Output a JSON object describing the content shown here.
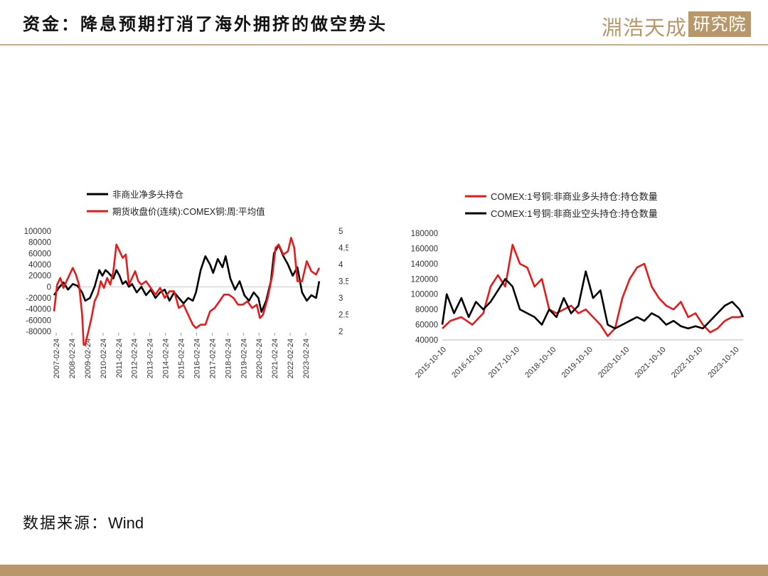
{
  "header": {
    "title": "资金：降息预期打消了海外拥挤的做空势头",
    "logo_text": "淵浩天成",
    "logo_box_text": "研究院"
  },
  "footer": {
    "source_label": "数据来源：",
    "source_value": "Wind"
  },
  "colors": {
    "red": "#e8191a",
    "black": "#000000",
    "gold": "#b8986a",
    "zero_line": "#c8c8c8"
  },
  "chart_data": [
    {
      "type": "line",
      "title": "",
      "legend_position": "top",
      "y_left": {
        "min": -80000,
        "max": 100000,
        "ticks": [
          100000,
          80000,
          60000,
          40000,
          20000,
          0,
          -20000,
          -40000,
          -60000,
          -80000
        ]
      },
      "y_right": {
        "min": 2,
        "max": 5,
        "ticks": [
          "5",
          "4.5",
          "4",
          "3.5",
          "3",
          "2.5",
          "2"
        ]
      },
      "x_range": [
        2007.0,
        2024.05
      ],
      "x_tick_labels": [
        "2007-02-24",
        "2008-02-24",
        "2009-02-24",
        "2010-02-24",
        "2011-02-24",
        "2012-02-24",
        "2013-02-24",
        "2014-02-24",
        "2015-02-24",
        "2016-02-24",
        "2017-02-24",
        "2018-02-24",
        "2019-02-24",
        "2020-02-24",
        "2021-02-24",
        "2022-02-24",
        "2023-02-24"
      ],
      "series": [
        {
          "name": "非商业净多头持仓",
          "axis": "left",
          "color": "#000000",
          "x": [
            2007.0,
            2007.3,
            2007.6,
            2007.9,
            2008.2,
            2008.5,
            2008.8,
            2009.0,
            2009.3,
            2009.6,
            2009.9,
            2010.1,
            2010.3,
            2010.5,
            2010.8,
            2011.0,
            2011.2,
            2011.4,
            2011.6,
            2011.8,
            2012.0,
            2012.3,
            2012.6,
            2012.9,
            2013.2,
            2013.5,
            2013.8,
            2014.1,
            2014.4,
            2014.7,
            2015.0,
            2015.3,
            2015.6,
            2015.9,
            2016.1,
            2016.4,
            2016.7,
            2017.0,
            2017.2,
            2017.5,
            2017.8,
            2018.0,
            2018.3,
            2018.6,
            2018.9,
            2019.2,
            2019.5,
            2019.8,
            2020.1,
            2020.3,
            2020.6,
            2020.9,
            2021.1,
            2021.4,
            2021.7,
            2022.0,
            2022.3,
            2022.6,
            2022.9,
            2023.2,
            2023.5,
            2023.8,
            2024.0
          ],
          "values": [
            -15000,
            -2000,
            8000,
            -5000,
            5000,
            2000,
            -10000,
            -25000,
            -20000,
            0,
            30000,
            20000,
            30000,
            25000,
            15000,
            30000,
            20000,
            5000,
            10000,
            0,
            5000,
            -10000,
            0,
            -15000,
            -5000,
            -20000,
            -10000,
            -5000,
            -25000,
            -10000,
            -20000,
            -30000,
            -20000,
            -25000,
            -10000,
            30000,
            55000,
            40000,
            25000,
            50000,
            35000,
            55000,
            15000,
            -5000,
            10000,
            -15000,
            -25000,
            -10000,
            -20000,
            -45000,
            -25000,
            10000,
            60000,
            75000,
            55000,
            40000,
            20000,
            35000,
            -10000,
            -25000,
            -15000,
            -20000,
            10000
          ]
        },
        {
          "name": "期货收盘价(连续):COMEX铜:周:平均值",
          "axis": "right",
          "color": "#e8191a",
          "x": [
            2007.0,
            2007.2,
            2007.4,
            2007.6,
            2007.8,
            2008.0,
            2008.2,
            2008.4,
            2008.6,
            2008.8,
            2008.9,
            2009.0,
            2009.2,
            2009.4,
            2009.6,
            2009.8,
            2010.0,
            2010.2,
            2010.4,
            2010.6,
            2010.8,
            2011.0,
            2011.2,
            2011.4,
            2011.6,
            2011.8,
            2012.0,
            2012.2,
            2012.4,
            2012.6,
            2012.9,
            2013.2,
            2013.5,
            2013.8,
            2014.1,
            2014.4,
            2014.7,
            2015.0,
            2015.3,
            2015.6,
            2015.9,
            2016.1,
            2016.4,
            2016.7,
            2017.0,
            2017.3,
            2017.6,
            2017.9,
            2018.2,
            2018.5,
            2018.8,
            2019.1,
            2019.4,
            2019.7,
            2020.0,
            2020.2,
            2020.4,
            2020.7,
            2021.0,
            2021.2,
            2021.4,
            2021.7,
            2022.0,
            2022.2,
            2022.4,
            2022.6,
            2022.9,
            2023.2,
            2023.5,
            2023.8,
            2024.0
          ],
          "values": [
            2.6,
            3.4,
            3.6,
            3.3,
            3.5,
            3.7,
            3.9,
            3.7,
            3.4,
            2.5,
            1.6,
            1.6,
            2.0,
            2.4,
            2.9,
            3.1,
            3.5,
            3.3,
            3.6,
            3.4,
            3.8,
            4.6,
            4.4,
            4.2,
            4.3,
            3.4,
            3.6,
            3.8,
            3.5,
            3.4,
            3.5,
            3.3,
            3.1,
            3.3,
            3.0,
            3.2,
            3.2,
            2.7,
            2.8,
            2.5,
            2.2,
            2.1,
            2.2,
            2.2,
            2.6,
            2.7,
            2.9,
            3.1,
            3.1,
            3.0,
            2.8,
            2.8,
            2.9,
            2.7,
            2.8,
            2.4,
            2.5,
            3.0,
            3.7,
            4.5,
            4.6,
            4.3,
            4.4,
            4.8,
            4.5,
            3.5,
            3.5,
            4.1,
            3.8,
            3.7,
            3.9
          ]
        }
      ]
    },
    {
      "type": "line",
      "title": "",
      "legend_position": "top",
      "y_axis": {
        "min": 40000,
        "max": 180000,
        "ticks": [
          180000,
          160000,
          140000,
          120000,
          100000,
          80000,
          60000,
          40000
        ]
      },
      "x_range": [
        2015.78,
        2024.0
      ],
      "x_tick_labels": [
        "2015-10-10",
        "2016-10-10",
        "2017-10-10",
        "2018-10-10",
        "2019-10-10",
        "2020-10-10",
        "2021-10-10",
        "2022-10-10",
        "2023-10-10"
      ],
      "series": [
        {
          "name": "COMEX:1号铜:非商业多头持仓:持仓数量",
          "color": "#e8191a",
          "x": [
            2015.78,
            2016.0,
            2016.3,
            2016.6,
            2016.9,
            2017.1,
            2017.3,
            2017.5,
            2017.7,
            2017.9,
            2018.1,
            2018.3,
            2018.5,
            2018.7,
            2018.9,
            2019.1,
            2019.3,
            2019.5,
            2019.7,
            2019.9,
            2020.1,
            2020.3,
            2020.5,
            2020.7,
            2020.9,
            2021.1,
            2021.3,
            2021.5,
            2021.7,
            2021.9,
            2022.1,
            2022.3,
            2022.5,
            2022.7,
            2022.9,
            2023.1,
            2023.3,
            2023.5,
            2023.7,
            2023.9,
            2024.0
          ],
          "values": [
            55000,
            65000,
            70000,
            60000,
            75000,
            110000,
            125000,
            110000,
            165000,
            140000,
            135000,
            110000,
            120000,
            80000,
            75000,
            80000,
            85000,
            75000,
            80000,
            70000,
            60000,
            45000,
            55000,
            95000,
            120000,
            135000,
            140000,
            110000,
            95000,
            85000,
            80000,
            90000,
            70000,
            75000,
            60000,
            50000,
            55000,
            65000,
            70000,
            70000,
            72000
          ]
        },
        {
          "name": "COMEX:1号铜:非商业空头持仓:持仓数量",
          "color": "#000000",
          "x": [
            2015.78,
            2015.9,
            2016.1,
            2016.3,
            2016.5,
            2016.7,
            2016.9,
            2017.1,
            2017.3,
            2017.5,
            2017.7,
            2017.9,
            2018.1,
            2018.3,
            2018.5,
            2018.7,
            2018.9,
            2019.1,
            2019.3,
            2019.5,
            2019.7,
            2019.9,
            2020.1,
            2020.3,
            2020.5,
            2020.7,
            2020.9,
            2021.1,
            2021.3,
            2021.5,
            2021.7,
            2021.9,
            2022.1,
            2022.3,
            2022.5,
            2022.7,
            2022.9,
            2023.1,
            2023.3,
            2023.5,
            2023.7,
            2023.9,
            2024.0
          ],
          "values": [
            60000,
            100000,
            75000,
            95000,
            70000,
            90000,
            80000,
            90000,
            105000,
            120000,
            110000,
            80000,
            75000,
            70000,
            60000,
            80000,
            70000,
            95000,
            75000,
            85000,
            130000,
            95000,
            105000,
            60000,
            55000,
            60000,
            65000,
            70000,
            65000,
            75000,
            70000,
            60000,
            65000,
            58000,
            55000,
            58000,
            55000,
            65000,
            75000,
            85000,
            90000,
            80000,
            70000
          ]
        }
      ]
    }
  ]
}
